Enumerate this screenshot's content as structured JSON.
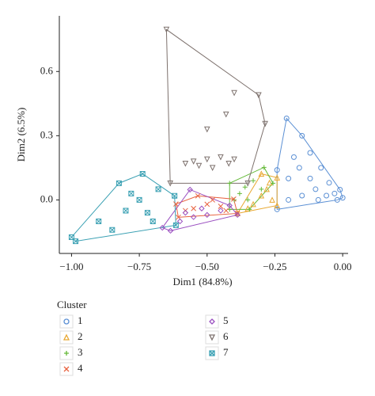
{
  "chart_data": {
    "type": "scatter",
    "x_label": "Dim1 (84.8%)",
    "y_label": "Dim2 (6.5%)",
    "legend_title": "Cluster",
    "hulls": true,
    "xlim": [
      -1.045,
      0.02
    ],
    "ylim": [
      -0.25,
      0.86
    ],
    "xticks": [
      {
        "value": -1,
        "label": "−1.00"
      },
      {
        "value": -0.75,
        "label": "−0.75"
      },
      {
        "value": -0.5,
        "label": "−0.50"
      },
      {
        "value": -0.25,
        "label": "−0.25"
      },
      {
        "value": 0,
        "label": "0.00"
      }
    ],
    "yticks": [
      {
        "value": 0,
        "label": "0.0"
      },
      0.3,
      0.6
    ],
    "series": [
      {
        "name": "1",
        "color": "#5a8fd4",
        "marker": "circle",
        "x": [
          -0.207,
          -0.01,
          0,
          -0.242,
          -0.242,
          -0.15,
          -0.12,
          -0.18,
          -0.08,
          -0.05,
          -0.1,
          -0.15,
          -0.2,
          -0.03,
          -0.06,
          -0.12,
          -0.2,
          -0.09,
          -0.02,
          -0.16
        ],
        "y": [
          0.381,
          0.048,
          0.01,
          -0.044,
          0.14,
          0.3,
          0.22,
          0.2,
          0.15,
          0.08,
          0.05,
          0.02,
          0,
          0.03,
          0.02,
          0.1,
          0.1,
          0,
          0,
          0.15
        ]
      },
      {
        "name": "2",
        "color": "#e8a832",
        "marker": "triangle-up",
        "x": [
          -0.388,
          -0.242,
          -0.242,
          -0.3,
          -0.3,
          -0.28,
          -0.33,
          -0.26,
          -0.27,
          -0.35
        ],
        "y": [
          -0.063,
          -0.026,
          0.104,
          0.122,
          0.02,
          0.05,
          -0.02,
          0,
          0.08,
          -0.04
        ]
      },
      {
        "name": "3",
        "color": "#63b937",
        "marker": "plus",
        "x": [
          -0.417,
          -0.29,
          -0.257,
          -0.344,
          -0.417,
          -0.38,
          -0.36,
          -0.33,
          -0.3,
          -0.4,
          -0.35
        ],
        "y": [
          0.078,
          0.152,
          0.078,
          -0.044,
          -0.044,
          0.03,
          0.06,
          0.09,
          0.05,
          0,
          0
        ]
      },
      {
        "name": "4",
        "color": "#e8623f",
        "marker": "cross",
        "x": [
          -0.615,
          -0.534,
          -0.402,
          -0.388,
          -0.606,
          -0.55,
          -0.5,
          -0.45,
          -0.48,
          -0.58,
          -0.43
        ],
        "y": [
          -0.019,
          0.019,
          0.004,
          -0.063,
          -0.081,
          -0.04,
          -0.02,
          -0.03,
          0,
          -0.05,
          -0.05
        ]
      },
      {
        "name": "5",
        "color": "#9a4fc0",
        "marker": "diamond",
        "x": [
          -0.665,
          -0.563,
          -0.417,
          -0.388,
          -0.635,
          -0.6,
          -0.55,
          -0.5,
          -0.45,
          -0.58,
          -0.52
        ],
        "y": [
          -0.13,
          0.048,
          -0.026,
          -0.07,
          -0.144,
          -0.1,
          -0.08,
          -0.07,
          -0.05,
          -0.06,
          -0.04
        ]
      },
      {
        "name": "6",
        "color": "#7d716d",
        "marker": "triangle-down",
        "x": [
          -0.65,
          -0.31,
          -0.286,
          -0.35,
          -0.636,
          -0.4,
          -0.43,
          -0.5,
          -0.58,
          -0.55,
          -0.5,
          -0.45,
          -0.42,
          -0.48,
          -0.4,
          -0.53
        ],
        "y": [
          0.796,
          0.49,
          0.356,
          0.078,
          0.078,
          0.5,
          0.4,
          0.33,
          0.17,
          0.18,
          0.19,
          0.2,
          0.17,
          0.15,
          0.19,
          0.16
        ]
      },
      {
        "name": "7",
        "color": "#3aa0b3",
        "marker": "square-x",
        "x": [
          -1,
          -0.825,
          -0.738,
          -0.62,
          -0.615,
          -0.985,
          -0.9,
          -0.8,
          -0.75,
          -0.7,
          -0.68,
          -0.85,
          -0.72,
          -0.78
        ],
        "y": [
          -0.174,
          0.078,
          0.122,
          0.019,
          -0.118,
          -0.193,
          -0.1,
          -0.05,
          0,
          -0.1,
          0.05,
          -0.14,
          -0.06,
          0.03
        ]
      }
    ]
  }
}
